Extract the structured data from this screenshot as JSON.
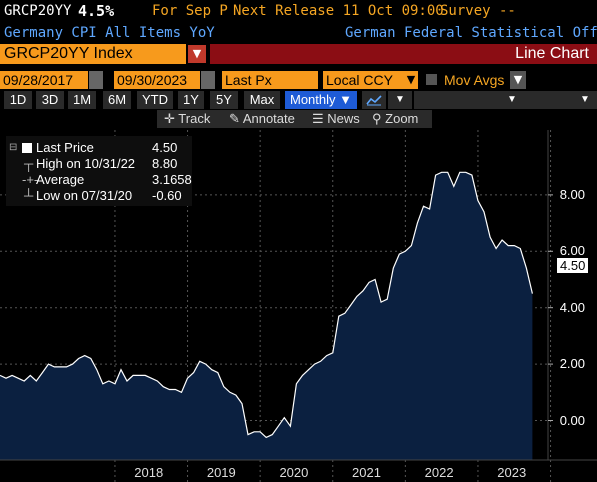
{
  "header": {
    "ticker": "GRCP20YY",
    "value": "4.5%",
    "for_label": "For Sep P",
    "next_release": "Next Release 11 Oct 09:00",
    "survey": "Survey --",
    "description": "Germany CPI All Items YoY",
    "source": "German Federal Statistical Office"
  },
  "security": {
    "name": "GRCP20YY Index",
    "chart_type": "Line Chart"
  },
  "controls": {
    "start_date": "09/28/2017",
    "end_date": "09/30/2023",
    "field": "Last Px",
    "currency": "Local CCY",
    "mov_avgs": "Mov Avgs"
  },
  "ranges": [
    "1D",
    "3D",
    "1M",
    "6M",
    "YTD",
    "1Y",
    "5Y",
    "Max"
  ],
  "period": "Monthly ▼",
  "tools": {
    "track": "Track",
    "annotate": "Annotate",
    "news": "News",
    "zoom": "Zoom"
  },
  "legend": {
    "last_price_label": "Last Price",
    "last_price_value": "4.50",
    "high_label": "High on 10/31/22",
    "high_value": "8.80",
    "average_label": "Average",
    "average_value": "3.1658",
    "low_label": "Low on 07/31/20",
    "low_value": "-0.60"
  },
  "last_value_tag": "4.50",
  "colors": {
    "amber": "#f5a623",
    "area_fill": "#0b2040",
    "line": "#ffffff",
    "period_active": "#1e5bd6",
    "title_bar": "#8b0d14"
  },
  "chart_data": {
    "type": "area",
    "series": [
      {
        "values": [
          1.6,
          1.5,
          1.6,
          1.5,
          1.4,
          1.6,
          1.4,
          1.7,
          2.0,
          1.9,
          1.9,
          1.9,
          2.0,
          2.2,
          2.3,
          2.2,
          1.8,
          1.3,
          1.4,
          1.3,
          1.8,
          1.4,
          1.6,
          1.6,
          1.6,
          1.5,
          1.4,
          1.2,
          1.1,
          1.1,
          1.0,
          1.5,
          1.7,
          2.1,
          2.0,
          1.8,
          1.7,
          1.2,
          1.0,
          0.9,
          0.6,
          -0.5,
          -0.4,
          -0.4,
          -0.6,
          -0.5,
          -0.2,
          0.1,
          -0.2,
          1.3,
          1.6,
          1.8,
          2.0,
          2.1,
          2.3,
          2.4,
          3.7,
          3.8,
          4.1,
          4.4,
          4.6,
          4.9,
          5.0,
          4.2,
          4.3,
          5.4,
          5.9,
          6.0,
          6.2,
          7.0,
          7.6,
          7.5,
          8.7,
          8.8,
          8.8,
          8.3,
          8.8,
          8.8,
          8.7,
          7.8,
          7.4,
          6.5,
          6.1,
          6.4,
          6.2,
          6.2,
          6.1,
          5.4,
          4.5
        ]
      }
    ],
    "x_start": "2016-06",
    "x_end": "2023-09",
    "x_ticks": [
      "2018",
      "2019",
      "2020",
      "2021",
      "2022",
      "2023"
    ],
    "y_ticks": [
      "8.00",
      "6.00",
      "4.00",
      "2.00",
      "0.00"
    ],
    "ylim": [
      -1.4,
      10.3
    ],
    "grid": true
  }
}
